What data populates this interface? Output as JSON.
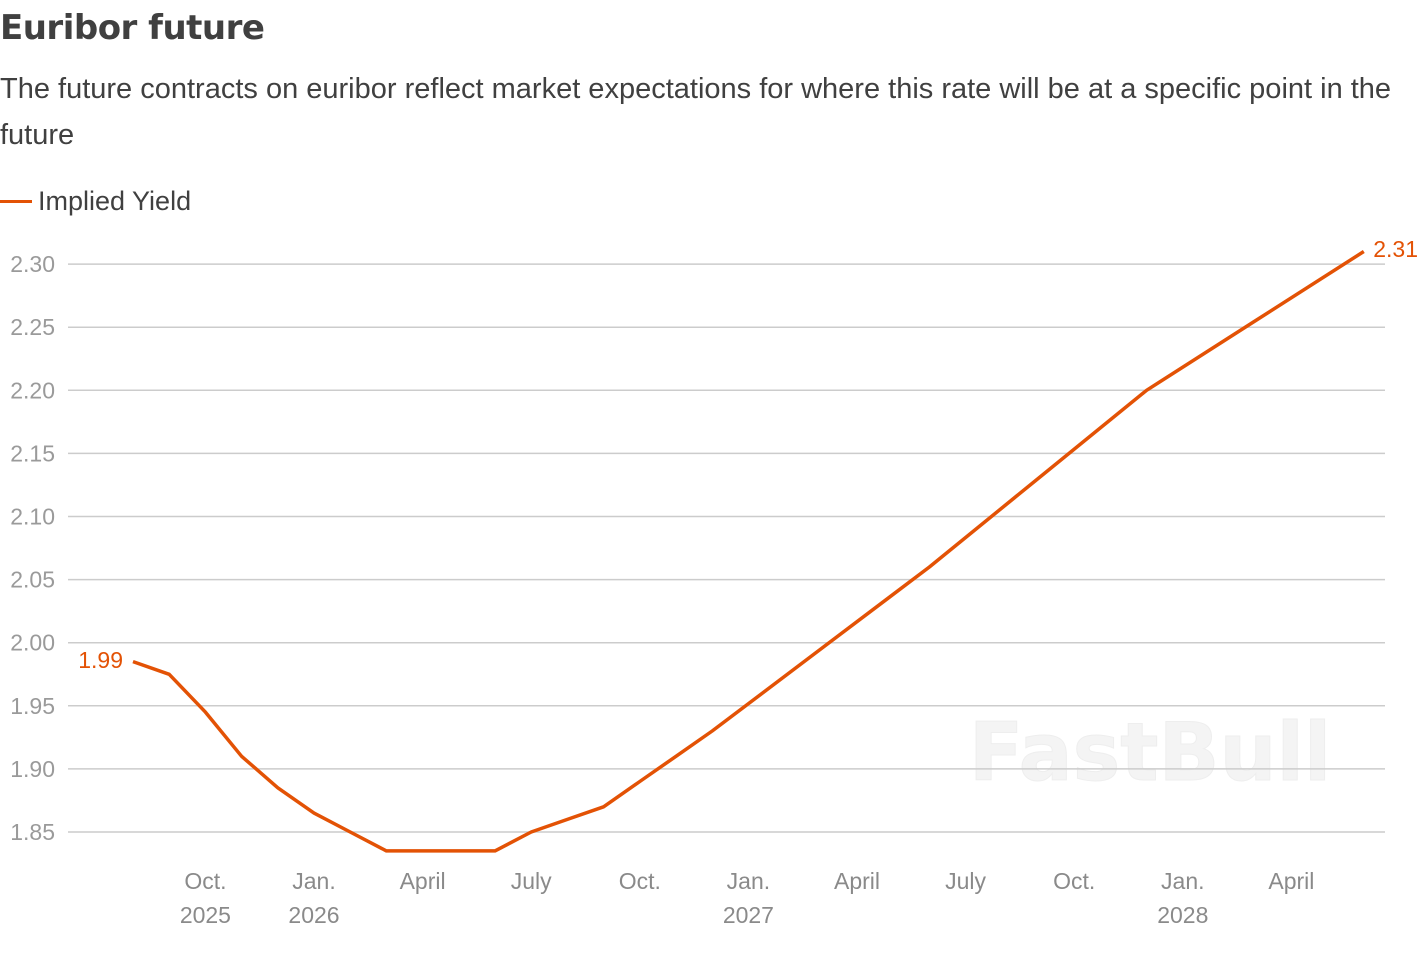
{
  "title": "Euribor future",
  "subtitle": "The future contracts on euribor reflect market expectations for where this rate will be at a specific point in the future",
  "watermark": "FastBull",
  "chart_data": {
    "type": "line",
    "title": "Euribor future",
    "xlabel": "",
    "ylabel": "",
    "ylim": [
      1.82,
      2.31
    ],
    "yticks": [
      "1.85",
      "1.90",
      "1.95",
      "2.00",
      "2.05",
      "2.10",
      "2.15",
      "2.20",
      "2.25",
      "2.30"
    ],
    "xticks": [
      {
        "date": "2025-10",
        "line1": "Oct.",
        "line2": "2025"
      },
      {
        "date": "2026-01",
        "line1": "Jan.",
        "line2": "2026"
      },
      {
        "date": "2026-04",
        "line1": "April",
        "line2": ""
      },
      {
        "date": "2026-07",
        "line1": "July",
        "line2": ""
      },
      {
        "date": "2026-10",
        "line1": "Oct.",
        "line2": ""
      },
      {
        "date": "2027-01",
        "line1": "Jan.",
        "line2": "2027"
      },
      {
        "date": "2027-04",
        "line1": "April",
        "line2": ""
      },
      {
        "date": "2027-07",
        "line1": "July",
        "line2": ""
      },
      {
        "date": "2027-10",
        "line1": "Oct.",
        "line2": ""
      },
      {
        "date": "2028-01",
        "line1": "Jan.",
        "line2": "2028"
      },
      {
        "date": "2028-04",
        "line1": "April",
        "line2": ""
      }
    ],
    "grid": true,
    "legend": "top-left",
    "series": [
      {
        "name": "Implied Yield",
        "color": "#e35205",
        "x": [
          "2025-08",
          "2025-09",
          "2025-10",
          "2025-11",
          "2025-12",
          "2026-01",
          "2026-02",
          "2026-03",
          "2026-04",
          "2026-05",
          "2026-06",
          "2026-07",
          "2026-08",
          "2026-09",
          "2026-10",
          "2026-11",
          "2026-12",
          "2027-03",
          "2027-06",
          "2027-09",
          "2027-12",
          "2028-03",
          "2028-06"
        ],
        "y": [
          1.985,
          1.975,
          1.945,
          1.91,
          1.885,
          1.865,
          1.85,
          1.835,
          1.835,
          1.835,
          1.835,
          1.85,
          1.86,
          1.87,
          1.89,
          1.91,
          1.93,
          1.995,
          2.06,
          2.13,
          2.2,
          2.255,
          2.31
        ]
      }
    ],
    "annotations": {
      "first": "1.99",
      "last": "2.31"
    }
  }
}
